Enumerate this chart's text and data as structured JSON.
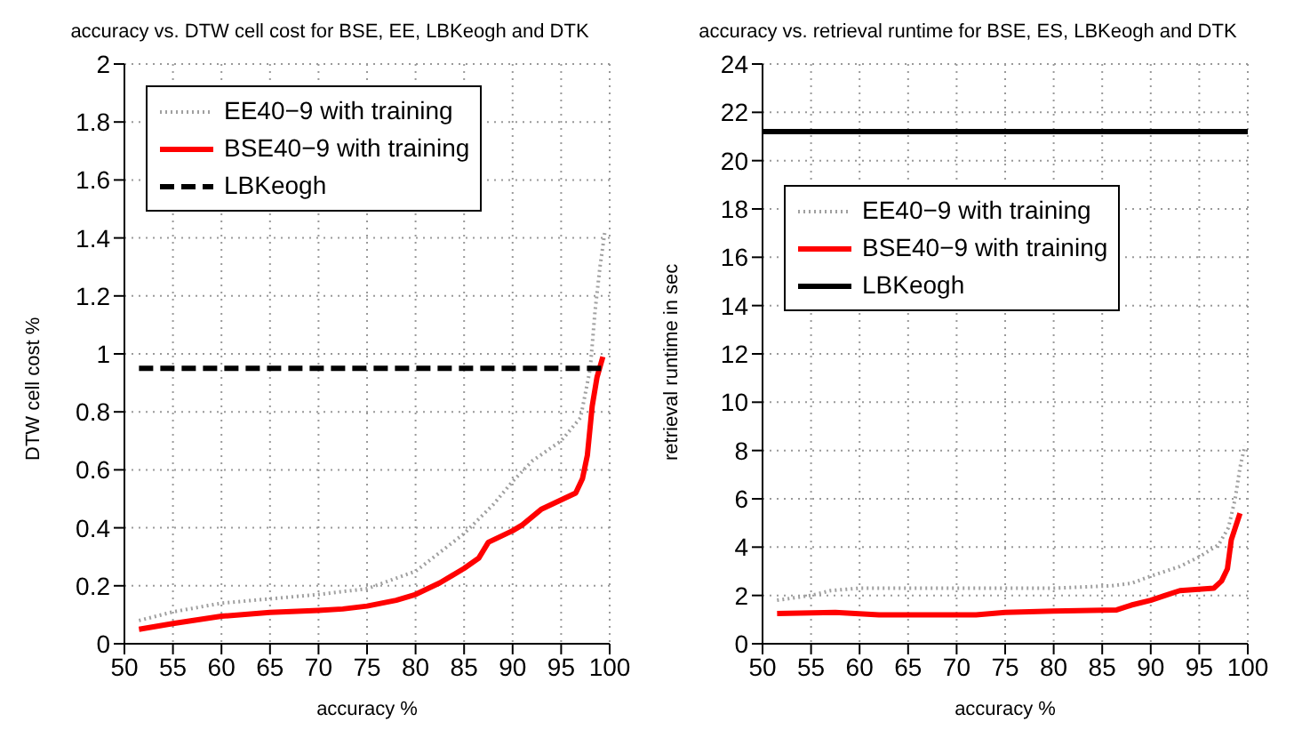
{
  "chart_data": [
    {
      "type": "line",
      "title": "accuracy vs. DTW cell cost for BSE, EE, LBKeogh and DTK",
      "xlabel": "accuracy %",
      "ylabel": "DTW cell cost %",
      "xlim": [
        50,
        100
      ],
      "xticks": [
        50,
        55,
        60,
        65,
        70,
        75,
        80,
        85,
        90,
        95,
        100
      ],
      "ylim": [
        0,
        2
      ],
      "yticks": [
        0,
        0.2,
        0.4,
        0.6,
        0.8,
        1,
        1.2,
        1.4,
        1.6,
        1.8,
        2
      ],
      "grid": true,
      "legend": "top left",
      "marker": "none",
      "series": [
        {
          "name": "EE40−9 with training",
          "color": "#a0a0a0",
          "line_style": "dotted",
          "x": [
            51.5,
            55,
            60,
            65,
            70,
            75,
            80,
            85,
            88,
            90,
            92,
            95,
            97,
            98,
            98.5,
            99,
            99.5
          ],
          "values": [
            0.08,
            0.11,
            0.14,
            0.155,
            0.17,
            0.19,
            0.25,
            0.38,
            0.48,
            0.56,
            0.63,
            0.7,
            0.78,
            0.95,
            1.15,
            1.3,
            1.42
          ]
        },
        {
          "name": "BSE40−9 with training",
          "color": "#ff0000",
          "line_style": "solid",
          "x": [
            51.5,
            55,
            60,
            65,
            70,
            72.5,
            75,
            78,
            80,
            82.5,
            85,
            86.5,
            87.5,
            90,
            91,
            93,
            96.5,
            97.2,
            97.7,
            98.2,
            98.7,
            99.3
          ],
          "values": [
            0.05,
            0.07,
            0.095,
            0.108,
            0.115,
            0.12,
            0.13,
            0.15,
            0.17,
            0.21,
            0.26,
            0.295,
            0.35,
            0.39,
            0.41,
            0.465,
            0.52,
            0.57,
            0.65,
            0.82,
            0.92,
            0.99
          ]
        },
        {
          "name": "LBKeogh",
          "color": "#000000",
          "line_style": "dashed",
          "x": [
            51.5,
            99.5
          ],
          "values": [
            0.95,
            0.95
          ]
        }
      ]
    },
    {
      "type": "line",
      "title": "accuracy vs. retrieval runtime for BSE, ES, LBKeogh and DTK",
      "xlabel": "accuracy %",
      "ylabel": "retrieval runtime in sec",
      "xlim": [
        50,
        100
      ],
      "xticks": [
        50,
        55,
        60,
        65,
        70,
        75,
        80,
        85,
        90,
        95,
        100
      ],
      "ylim": [
        0,
        24
      ],
      "yticks": [
        0,
        2,
        4,
        6,
        8,
        10,
        12,
        14,
        16,
        18,
        20,
        22,
        24
      ],
      "grid": true,
      "legend": "top left",
      "marker": "none",
      "series": [
        {
          "name": "EE40−9 with training",
          "color": "#a0a0a0",
          "line_style": "dotted",
          "x": [
            51.5,
            55,
            57,
            60,
            70,
            80,
            86,
            88,
            90,
            93,
            95,
            97,
            98,
            98.7,
            99.2,
            99.7
          ],
          "values": [
            1.8,
            2,
            2.2,
            2.3,
            2.3,
            2.3,
            2.4,
            2.5,
            2.8,
            3.2,
            3.6,
            4.1,
            4.8,
            6,
            7.3,
            8.2
          ]
        },
        {
          "name": "BSE40−9 with training",
          "color": "#ff0000",
          "line_style": "solid",
          "x": [
            51.5,
            57.5,
            62,
            72,
            75,
            80,
            86.5,
            88,
            90,
            91.5,
            93,
            96.5,
            97.3,
            97.9,
            98.3,
            99.2
          ],
          "values": [
            1.25,
            1.3,
            1.2,
            1.2,
            1.3,
            1.35,
            1.4,
            1.6,
            1.8,
            2,
            2.2,
            2.3,
            2.6,
            3.1,
            4.3,
            5.4
          ]
        },
        {
          "name": "LBKeogh",
          "color": "#000000",
          "line_style": "solid",
          "x": [
            50,
            100
          ],
          "values": [
            21.2,
            21.2
          ]
        }
      ]
    }
  ]
}
